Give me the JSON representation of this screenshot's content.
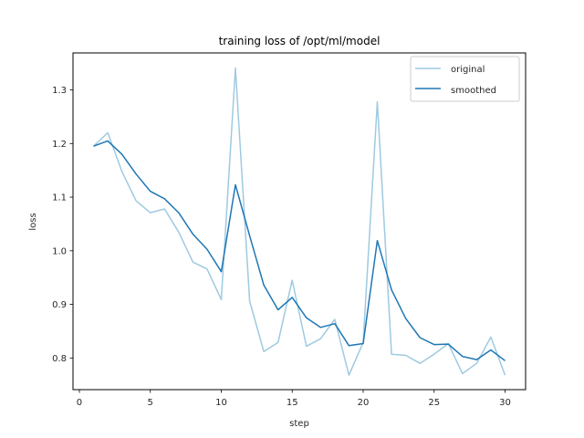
{
  "chart_data": {
    "type": "line",
    "title": "training loss of /opt/ml/model",
    "xlabel": "step",
    "ylabel": "loss",
    "xlim": [
      -0.45,
      31.45
    ],
    "ylim": [
      0.741,
      1.369
    ],
    "xticks": [
      0,
      5,
      10,
      15,
      20,
      25,
      30
    ],
    "yticks": [
      0.8,
      0.9,
      1.0,
      1.1,
      1.2,
      1.3
    ],
    "ytick_labels": [
      "0.8",
      "0.9",
      "1.0",
      "1.1",
      "1.2",
      "1.3"
    ],
    "grid": false,
    "legend_position": "upper right",
    "x": [
      1,
      2,
      3,
      4,
      5,
      6,
      7,
      8,
      9,
      10,
      11,
      12,
      13,
      14,
      15,
      16,
      17,
      18,
      19,
      20,
      21,
      22,
      23,
      24,
      25,
      26,
      27,
      28,
      29,
      30
    ],
    "series": [
      {
        "name": "original",
        "color": "#9ecae1",
        "values": [
          1.195,
          1.22,
          1.148,
          1.093,
          1.071,
          1.078,
          1.035,
          0.979,
          0.966,
          0.909,
          1.341,
          0.906,
          0.812,
          0.829,
          0.945,
          0.822,
          0.836,
          0.872,
          0.768,
          0.829,
          1.278,
          0.807,
          0.805,
          0.79,
          0.807,
          0.827,
          0.771,
          0.79,
          0.839,
          0.768
        ]
      },
      {
        "name": "smoothed",
        "color": "#1f77b4",
        "values": [
          1.195,
          1.205,
          1.18,
          1.143,
          1.111,
          1.097,
          1.071,
          1.031,
          1.003,
          0.961,
          1.123,
          1.028,
          0.936,
          0.89,
          0.913,
          0.875,
          0.857,
          0.864,
          0.823,
          0.827,
          1.019,
          0.927,
          0.874,
          0.838,
          0.825,
          0.826,
          0.803,
          0.797,
          0.815,
          0.795
        ]
      }
    ]
  }
}
